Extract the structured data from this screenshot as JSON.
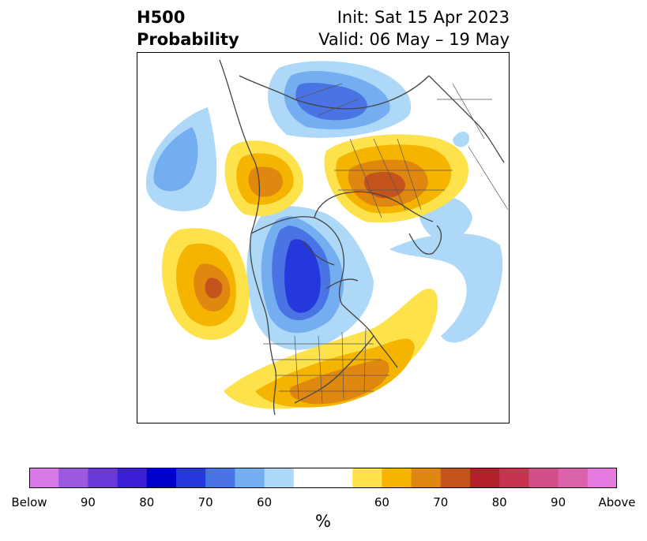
{
  "header": {
    "title_line1": "H500",
    "title_line2": "Probability",
    "init": "Init: Sat 15 Apr 2023",
    "valid": "Valid: 06 May – 19 May"
  },
  "colorbar": {
    "colors": [
      "#d77ae6",
      "#9b59df",
      "#6a38d8",
      "#3b1fd6",
      "#0000cd",
      "#2538db",
      "#4a73e3",
      "#74adf0",
      "#add8f7",
      "#ffffff",
      "#ffffff",
      "#fde24b",
      "#f4b400",
      "#df870f",
      "#c4541c",
      "#b3202a",
      "#c7344e",
      "#cf4f86",
      "#dc62ab",
      "#e77ae0"
    ],
    "tick_labels": [
      "Below",
      "90",
      "80",
      "70",
      "60",
      "60",
      "70",
      "80",
      "90",
      "Above"
    ],
    "units": "%"
  }
}
